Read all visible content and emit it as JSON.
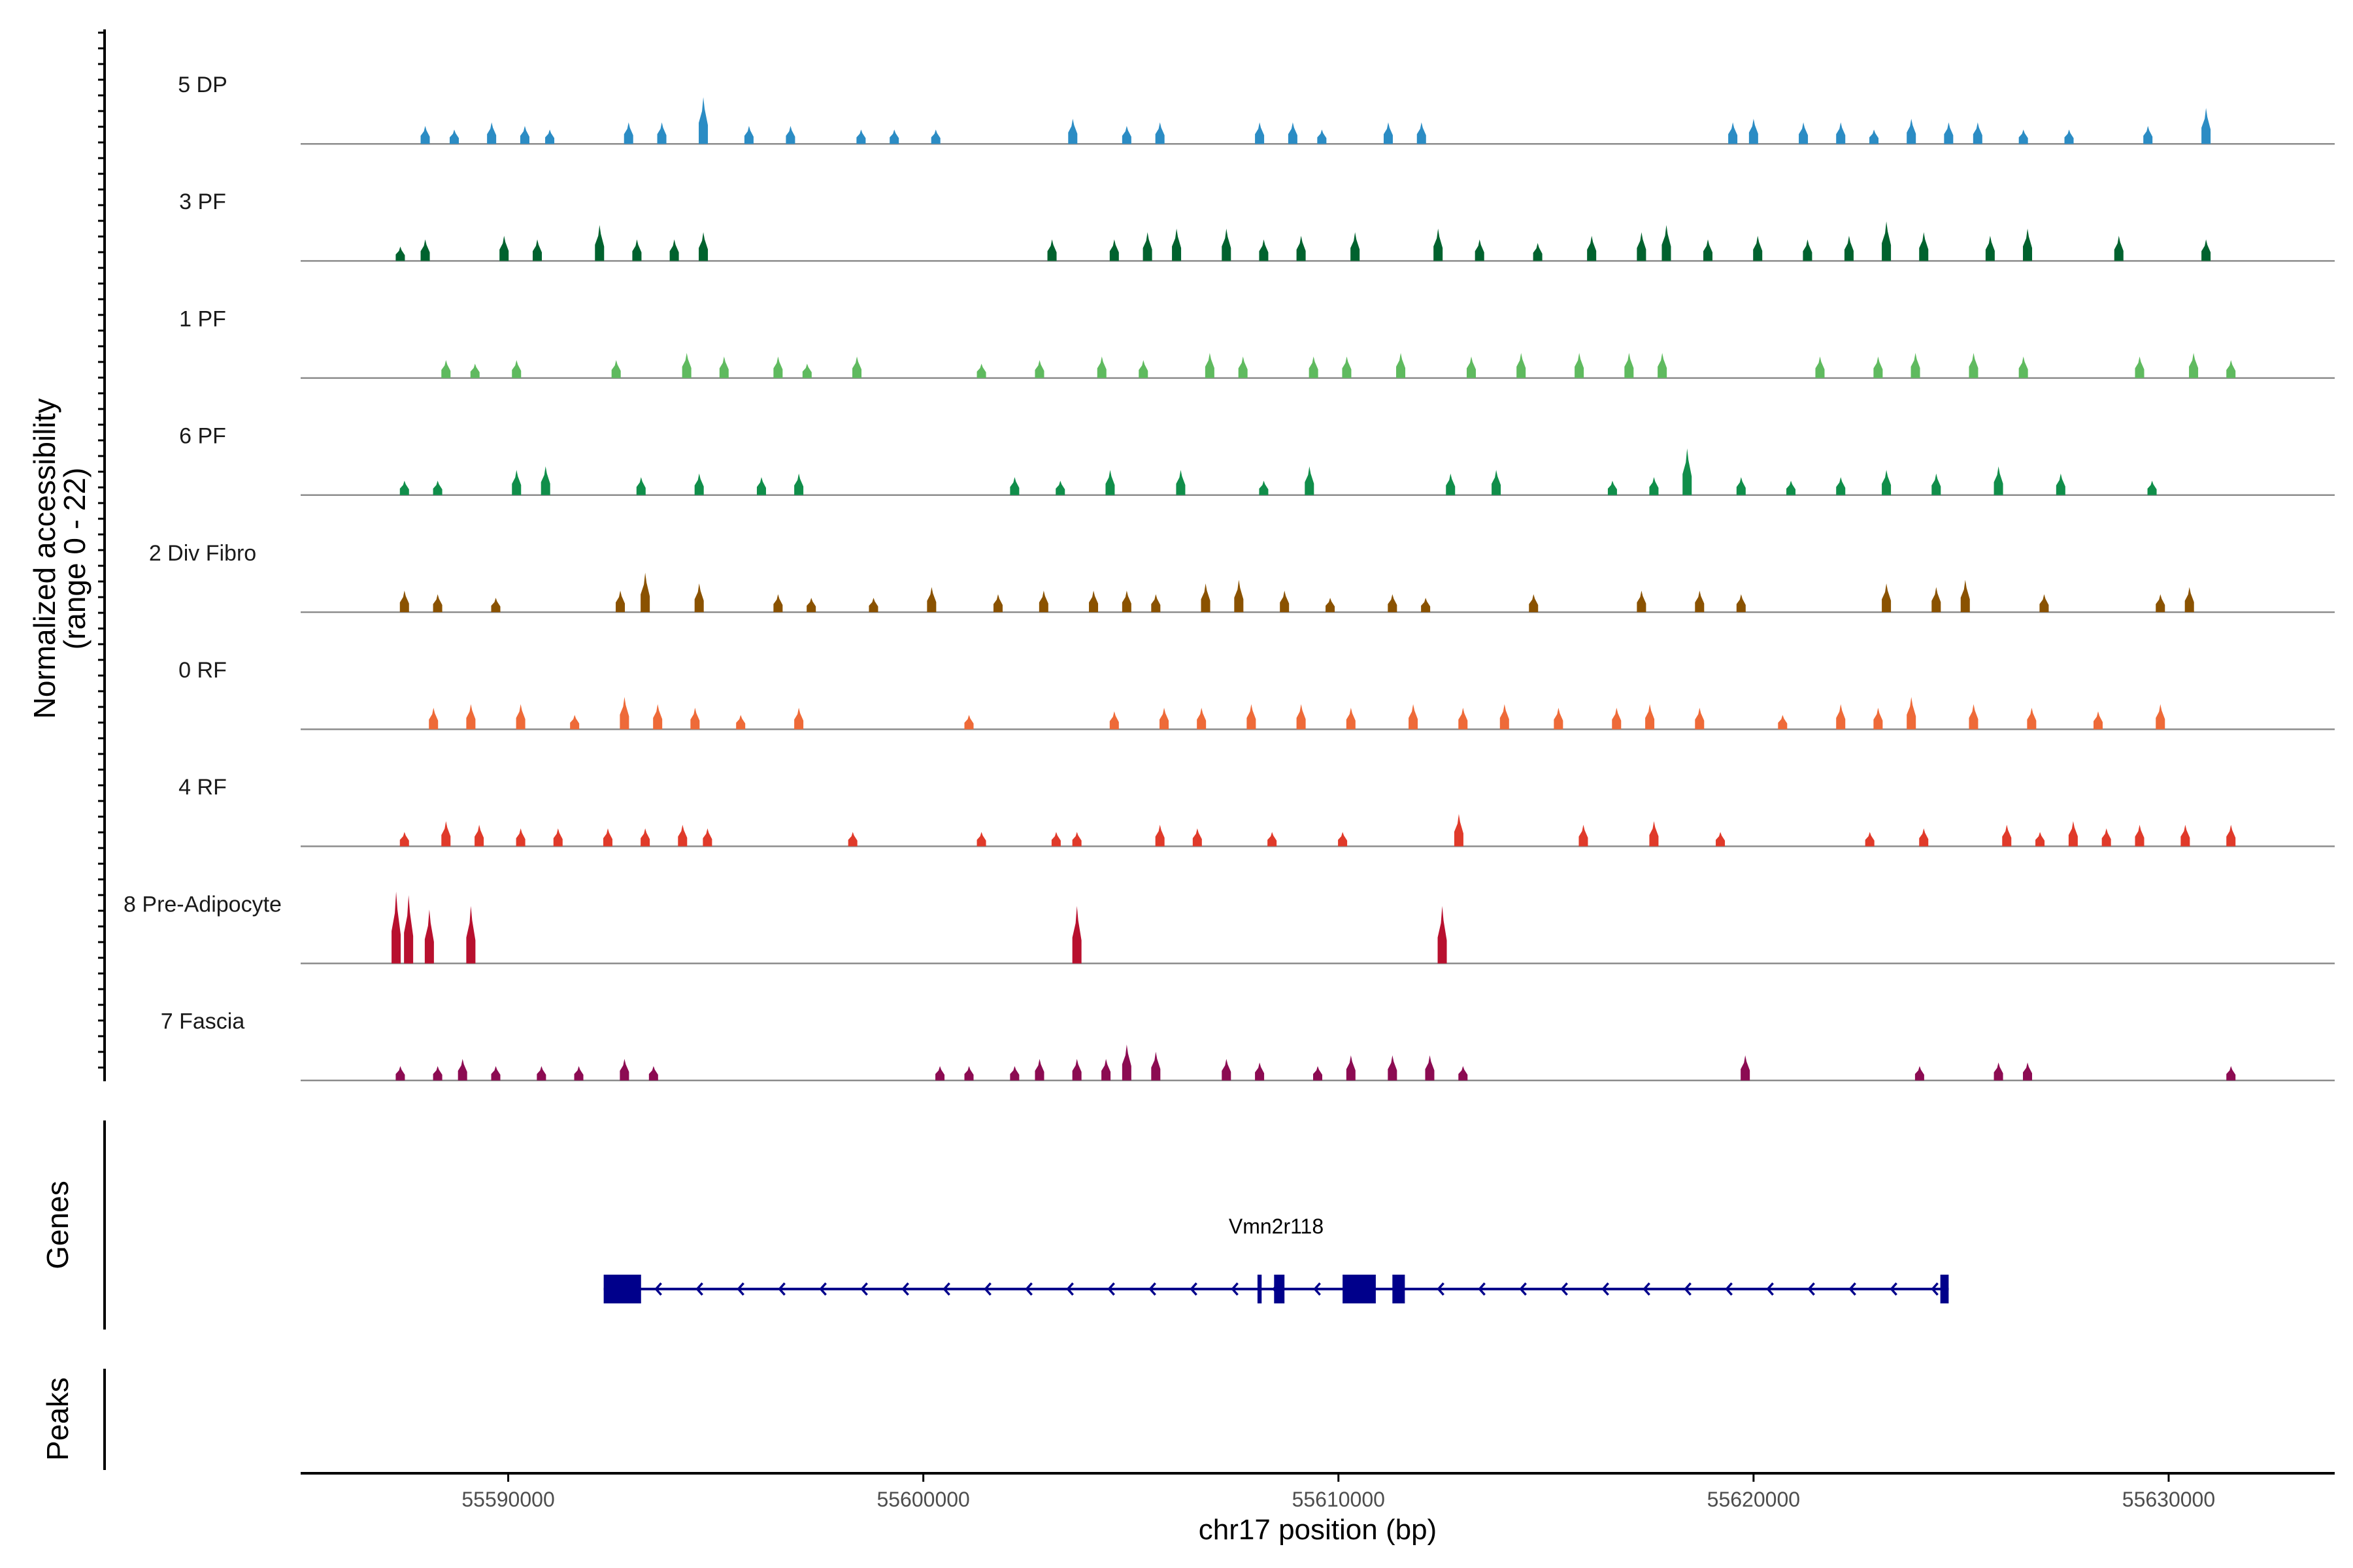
{
  "chart_data": {
    "type": "area",
    "chromosome": "chr17",
    "xlim": [
      55585000,
      55634000
    ],
    "ylim": [
      0,
      22
    ],
    "y_axis_title_line1": "Normalized accessibility",
    "y_axis_title_line2": "(range 0 - 22)",
    "x_axis_label": "chr17 position (bp)",
    "x_ticks": [
      55590000,
      55600000,
      55610000,
      55620000,
      55630000
    ],
    "x_tick_labels": [
      "55590000",
      "55600000",
      "55610000",
      "55620000",
      "55630000"
    ],
    "genes_track_label": "Genes",
    "peaks_track_label": "Peaks",
    "tracks": [
      {
        "name": "5 DP",
        "color": "#2b8cc4",
        "peaks": [
          [
            55588000,
            0.25
          ],
          [
            55588700,
            0.2
          ],
          [
            55589600,
            0.3
          ],
          [
            55590400,
            0.25
          ],
          [
            55591000,
            0.2
          ],
          [
            55592900,
            0.3
          ],
          [
            55593700,
            0.3
          ],
          [
            55594700,
            0.65
          ],
          [
            55595800,
            0.25
          ],
          [
            55596800,
            0.25
          ],
          [
            55598500,
            0.2
          ],
          [
            55599300,
            0.2
          ],
          [
            55600300,
            0.2
          ],
          [
            55603600,
            0.35
          ],
          [
            55604900,
            0.25
          ],
          [
            55605700,
            0.3
          ],
          [
            55608100,
            0.3
          ],
          [
            55608900,
            0.3
          ],
          [
            55609600,
            0.2
          ],
          [
            55611200,
            0.3
          ],
          [
            55612000,
            0.3
          ],
          [
            55619500,
            0.3
          ],
          [
            55620000,
            0.35
          ],
          [
            55621200,
            0.3
          ],
          [
            55622100,
            0.3
          ],
          [
            55622900,
            0.2
          ],
          [
            55623800,
            0.35
          ],
          [
            55624700,
            0.3
          ],
          [
            55625400,
            0.3
          ],
          [
            55626500,
            0.2
          ],
          [
            55627600,
            0.2
          ],
          [
            55629500,
            0.25
          ],
          [
            55630900,
            0.5
          ]
        ]
      },
      {
        "name": "3 PF",
        "color": "#00622e",
        "peaks": [
          [
            55587400,
            0.2
          ],
          [
            55588000,
            0.3
          ],
          [
            55589900,
            0.35
          ],
          [
            55590700,
            0.3
          ],
          [
            55592200,
            0.5
          ],
          [
            55593100,
            0.3
          ],
          [
            55594000,
            0.3
          ],
          [
            55594700,
            0.4
          ],
          [
            55603100,
            0.3
          ],
          [
            55604600,
            0.3
          ],
          [
            55605400,
            0.4
          ],
          [
            55606100,
            0.45
          ],
          [
            55607300,
            0.45
          ],
          [
            55608200,
            0.3
          ],
          [
            55609100,
            0.35
          ],
          [
            55610400,
            0.4
          ],
          [
            55612400,
            0.45
          ],
          [
            55613400,
            0.3
          ],
          [
            55614800,
            0.25
          ],
          [
            55616100,
            0.35
          ],
          [
            55617300,
            0.4
          ],
          [
            55617900,
            0.5
          ],
          [
            55618900,
            0.3
          ],
          [
            55620100,
            0.35
          ],
          [
            55621300,
            0.3
          ],
          [
            55622300,
            0.35
          ],
          [
            55623200,
            0.55
          ],
          [
            55624100,
            0.4
          ],
          [
            55625700,
            0.35
          ],
          [
            55626600,
            0.45
          ],
          [
            55628800,
            0.35
          ],
          [
            55630900,
            0.3
          ]
        ]
      },
      {
        "name": "1 PF",
        "color": "#5fba5f",
        "peaks": [
          [
            55588500,
            0.25
          ],
          [
            55589200,
            0.2
          ],
          [
            55590200,
            0.25
          ],
          [
            55592600,
            0.25
          ],
          [
            55594300,
            0.35
          ],
          [
            55595200,
            0.3
          ],
          [
            55596500,
            0.3
          ],
          [
            55597200,
            0.2
          ],
          [
            55598400,
            0.3
          ],
          [
            55601400,
            0.2
          ],
          [
            55602800,
            0.25
          ],
          [
            55604300,
            0.3
          ],
          [
            55605300,
            0.25
          ],
          [
            55606900,
            0.35
          ],
          [
            55607700,
            0.3
          ],
          [
            55609400,
            0.3
          ],
          [
            55610200,
            0.3
          ],
          [
            55611500,
            0.35
          ],
          [
            55613200,
            0.3
          ],
          [
            55614400,
            0.35
          ],
          [
            55615800,
            0.35
          ],
          [
            55617000,
            0.35
          ],
          [
            55617800,
            0.35
          ],
          [
            55621600,
            0.3
          ],
          [
            55623000,
            0.3
          ],
          [
            55623900,
            0.35
          ],
          [
            55625300,
            0.35
          ],
          [
            55626500,
            0.3
          ],
          [
            55629300,
            0.3
          ],
          [
            55630600,
            0.35
          ],
          [
            55631500,
            0.25
          ]
        ]
      },
      {
        "name": "6 PF",
        "color": "#108e4a",
        "peaks": [
          [
            55587500,
            0.2
          ],
          [
            55588300,
            0.2
          ],
          [
            55590200,
            0.35
          ],
          [
            55590900,
            0.4
          ],
          [
            55593200,
            0.25
          ],
          [
            55594600,
            0.3
          ],
          [
            55596100,
            0.25
          ],
          [
            55597000,
            0.3
          ],
          [
            55602200,
            0.25
          ],
          [
            55603300,
            0.2
          ],
          [
            55604500,
            0.35
          ],
          [
            55606200,
            0.35
          ],
          [
            55608200,
            0.2
          ],
          [
            55609300,
            0.4
          ],
          [
            55612700,
            0.3
          ],
          [
            55613800,
            0.35
          ],
          [
            55616600,
            0.2
          ],
          [
            55617600,
            0.25
          ],
          [
            55618400,
            0.65
          ],
          [
            55619700,
            0.25
          ],
          [
            55620900,
            0.2
          ],
          [
            55622100,
            0.25
          ],
          [
            55623200,
            0.35
          ],
          [
            55624400,
            0.3
          ],
          [
            55625900,
            0.4
          ],
          [
            55627400,
            0.3
          ],
          [
            55629600,
            0.2
          ]
        ]
      },
      {
        "name": "2 Div Fibro",
        "color": "#8a5200",
        "peaks": [
          [
            55587500,
            0.3
          ],
          [
            55588300,
            0.25
          ],
          [
            55589700,
            0.2
          ],
          [
            55592700,
            0.3
          ],
          [
            55593300,
            0.55
          ],
          [
            55594600,
            0.4
          ],
          [
            55596500,
            0.25
          ],
          [
            55597300,
            0.2
          ],
          [
            55598800,
            0.2
          ],
          [
            55600200,
            0.35
          ],
          [
            55601800,
            0.25
          ],
          [
            55602900,
            0.3
          ],
          [
            55604100,
            0.3
          ],
          [
            55604900,
            0.3
          ],
          [
            55605600,
            0.25
          ],
          [
            55606800,
            0.4
          ],
          [
            55607600,
            0.45
          ],
          [
            55608700,
            0.3
          ],
          [
            55609800,
            0.2
          ],
          [
            55611300,
            0.25
          ],
          [
            55612100,
            0.2
          ],
          [
            55614700,
            0.25
          ],
          [
            55617300,
            0.3
          ],
          [
            55618700,
            0.3
          ],
          [
            55619700,
            0.25
          ],
          [
            55623200,
            0.4
          ],
          [
            55624400,
            0.35
          ],
          [
            55625100,
            0.45
          ],
          [
            55627000,
            0.25
          ],
          [
            55629800,
            0.25
          ],
          [
            55630500,
            0.35
          ]
        ]
      },
      {
        "name": "0 RF",
        "color": "#ee6a38",
        "peaks": [
          [
            55588200,
            0.3
          ],
          [
            55589100,
            0.35
          ],
          [
            55590300,
            0.35
          ],
          [
            55591600,
            0.2
          ],
          [
            55592800,
            0.45
          ],
          [
            55593600,
            0.35
          ],
          [
            55594500,
            0.3
          ],
          [
            55595600,
            0.2
          ],
          [
            55597000,
            0.3
          ],
          [
            55601100,
            0.2
          ],
          [
            55604600,
            0.25
          ],
          [
            55605800,
            0.3
          ],
          [
            55606700,
            0.3
          ],
          [
            55607900,
            0.35
          ],
          [
            55609100,
            0.35
          ],
          [
            55610300,
            0.3
          ],
          [
            55611800,
            0.35
          ],
          [
            55613000,
            0.3
          ],
          [
            55614000,
            0.35
          ],
          [
            55615300,
            0.3
          ],
          [
            55616700,
            0.3
          ],
          [
            55617500,
            0.35
          ],
          [
            55618700,
            0.3
          ],
          [
            55620700,
            0.2
          ],
          [
            55622100,
            0.35
          ],
          [
            55623000,
            0.3
          ],
          [
            55623800,
            0.45
          ],
          [
            55625300,
            0.35
          ],
          [
            55626700,
            0.3
          ],
          [
            55628300,
            0.25
          ],
          [
            55629800,
            0.35
          ]
        ]
      },
      {
        "name": "4 RF",
        "color": "#e03a2a",
        "peaks": [
          [
            55587500,
            0.2
          ],
          [
            55588500,
            0.35
          ],
          [
            55589300,
            0.3
          ],
          [
            55590300,
            0.25
          ],
          [
            55591200,
            0.25
          ],
          [
            55592400,
            0.25
          ],
          [
            55593300,
            0.25
          ],
          [
            55594200,
            0.3
          ],
          [
            55594800,
            0.25
          ],
          [
            55598300,
            0.2
          ],
          [
            55601400,
            0.2
          ],
          [
            55603200,
            0.2
          ],
          [
            55603700,
            0.2
          ],
          [
            55605700,
            0.3
          ],
          [
            55606600,
            0.25
          ],
          [
            55608400,
            0.2
          ],
          [
            55610100,
            0.2
          ],
          [
            55612900,
            0.45
          ],
          [
            55615900,
            0.3
          ],
          [
            55617600,
            0.35
          ],
          [
            55619200,
            0.2
          ],
          [
            55622800,
            0.2
          ],
          [
            55624100,
            0.25
          ],
          [
            55626100,
            0.3
          ],
          [
            55626900,
            0.2
          ],
          [
            55627700,
            0.35
          ],
          [
            55628500,
            0.25
          ],
          [
            55629300,
            0.3
          ],
          [
            55630400,
            0.3
          ],
          [
            55631500,
            0.3
          ]
        ]
      },
      {
        "name": "8 Pre-Adipocyte",
        "color": "#b8102e",
        "peaks": [
          [
            55587300,
            1.0
          ],
          [
            55587600,
            0.95
          ],
          [
            55588100,
            0.75
          ],
          [
            55589100,
            0.8
          ],
          [
            55603700,
            0.8
          ],
          [
            55612500,
            0.8
          ]
        ]
      },
      {
        "name": "7 Fascia",
        "color": "#8c0b52",
        "peaks": [
          [
            55587400,
            0.2
          ],
          [
            55588300,
            0.2
          ],
          [
            55588900,
            0.3
          ],
          [
            55589700,
            0.2
          ],
          [
            55590800,
            0.2
          ],
          [
            55591700,
            0.2
          ],
          [
            55592800,
            0.3
          ],
          [
            55593500,
            0.2
          ],
          [
            55600400,
            0.2
          ],
          [
            55601100,
            0.2
          ],
          [
            55602200,
            0.2
          ],
          [
            55602800,
            0.3
          ],
          [
            55603700,
            0.3
          ],
          [
            55604400,
            0.3
          ],
          [
            55604900,
            0.5
          ],
          [
            55605600,
            0.4
          ],
          [
            55607300,
            0.3
          ],
          [
            55608100,
            0.25
          ],
          [
            55609500,
            0.2
          ],
          [
            55610300,
            0.35
          ],
          [
            55611300,
            0.35
          ],
          [
            55612200,
            0.35
          ],
          [
            55613000,
            0.2
          ],
          [
            55619800,
            0.35
          ],
          [
            55624000,
            0.2
          ],
          [
            55625900,
            0.25
          ],
          [
            55626600,
            0.25
          ],
          [
            55631500,
            0.2
          ]
        ]
      }
    ],
    "gene": {
      "name": "Vmn2r118",
      "start": 55592300,
      "end": 55624700,
      "strand": "-",
      "color": "#00008b",
      "exons": [
        [
          55592300,
          55593200
        ],
        [
          55608050,
          55608150
        ],
        [
          55608450,
          55608700
        ],
        [
          55610100,
          55610900
        ],
        [
          55611300,
          55611600
        ],
        [
          55624500,
          55624700
        ]
      ]
    }
  }
}
